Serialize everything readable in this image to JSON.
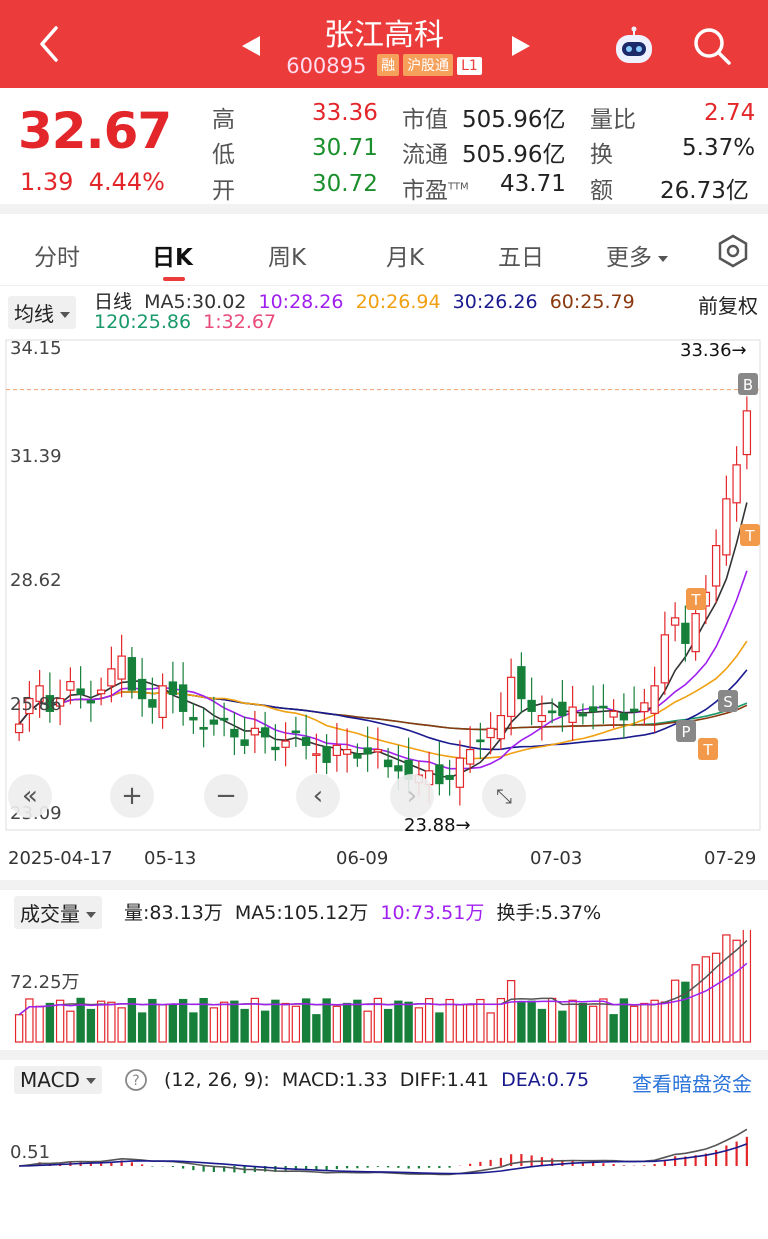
{
  "header": {
    "title": "张江高科",
    "code": "600895",
    "tags": [
      "融",
      "沪股通",
      "L1"
    ]
  },
  "quote": {
    "price": "32.67",
    "change": "1.39",
    "change_pct": "4.44%",
    "fields": [
      {
        "label": "高",
        "value": "33.36"
      },
      {
        "label": "低",
        "value": "30.71"
      },
      {
        "label": "开",
        "value": "30.72"
      },
      {
        "label": "市值",
        "value": "505.96亿"
      },
      {
        "label": "流通",
        "value": "505.96亿"
      },
      {
        "label": "市盈",
        "sup": "TTM",
        "value": "43.71"
      },
      {
        "label": "量比",
        "value": "2.74"
      },
      {
        "label": "换",
        "value": "5.37%"
      },
      {
        "label": "额",
        "value": "26.73亿"
      }
    ]
  },
  "tabs": [
    "分时",
    "日K",
    "周K",
    "月K",
    "五日",
    "更多"
  ],
  "active_tab": "日K",
  "kline": {
    "indicator_select": "均线",
    "period": "日线",
    "ma": [
      {
        "label": "MA5:30.02",
        "color": "#333333"
      },
      {
        "label": "10:28.26",
        "color": "#a020f0"
      },
      {
        "label": "20:26.94",
        "color": "#f0a010"
      },
      {
        "label": "30:26.26",
        "color": "#1a1a8f"
      },
      {
        "label": "60:25.79",
        "color": "#8b3a10"
      },
      {
        "label": "120:25.86",
        "color": "#1a9a6a"
      },
      {
        "label": "1:32.67",
        "color": "#e84a7a"
      }
    ],
    "adjust": "前复权",
    "y_labels": [
      "34.15",
      "31.39",
      "28.62",
      "25.86",
      "23.09"
    ],
    "high_mark": "33.36→",
    "low_mark": "23.88→",
    "dates": [
      "2025-04-17",
      "05-13",
      "06-09",
      "07-03",
      "07-29"
    ]
  },
  "volume": {
    "select": "成交量",
    "vol": "量:83.13万",
    "ma5": "MA5:105.12万",
    "ma10": "10:73.51万",
    "turnover": "换手:5.37%",
    "y_label": "72.25万"
  },
  "macd": {
    "select": "MACD",
    "params": "(12, 26, 9):",
    "macd": "MACD:1.33",
    "diff": "DIFF:1.41",
    "dea": "DEA:0.75",
    "link": "查看暗盘资金",
    "y_label": "0.51"
  },
  "chart_data": {
    "type": "candlestick",
    "title": "张江高科 日K",
    "ylim": [
      23.09,
      34.15
    ],
    "x_range": [
      "2025-04-17",
      "2025-07-29"
    ],
    "high": 33.36,
    "low": 23.88,
    "last_close": 32.67,
    "closes_approx": [
      25.3,
      25.9,
      26.2,
      25.6,
      25.9,
      26.3,
      26.0,
      25.8,
      26.1,
      26.6,
      26.9,
      26.1,
      25.9,
      25.7,
      26.2,
      26.0,
      25.6,
      25.4,
      25.2,
      25.3,
      25.4,
      25.0,
      24.8,
      25.2,
      25.0,
      24.7,
      24.9,
      25.1,
      24.8,
      24.6,
      24.4,
      24.8,
      24.7,
      24.5,
      24.6,
      24.7,
      24.3,
      24.2,
      24.0,
      24.1,
      24.2,
      23.9,
      24.0,
      24.5,
      24.7,
      24.9,
      25.2,
      25.5,
      26.4,
      25.9,
      25.6,
      25.5,
      25.6,
      25.5,
      25.7,
      25.5,
      25.6,
      25.7,
      25.6,
      25.4,
      25.6,
      25.8,
      26.2,
      27.4,
      27.8,
      27.2,
      27.9,
      28.4,
      29.5,
      30.6,
      31.4,
      32.67
    ]
  }
}
